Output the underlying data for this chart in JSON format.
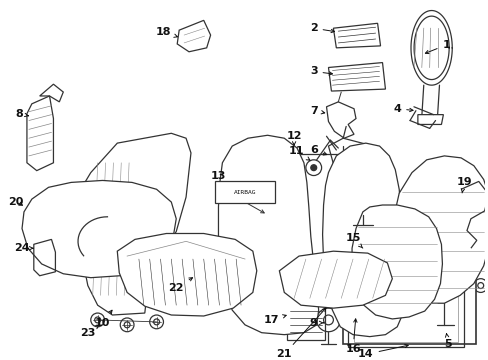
{
  "bg_color": "#ffffff",
  "gray": "#333333",
  "light_gray": "#888888"
}
